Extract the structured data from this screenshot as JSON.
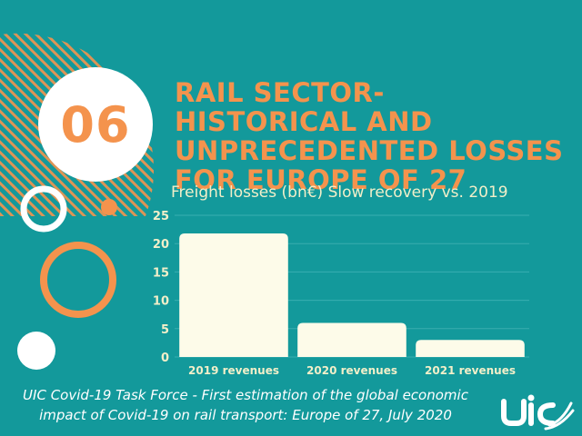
{
  "badge": {
    "number": "06"
  },
  "title": "RAIL SECTOR- HISTORICAL AND UNPRECEDENTED LOSSES FOR EUROPE OF 27",
  "subtitle": "Freight losses (bn€) Slow recovery vs. 2019",
  "caption": {
    "line1": "UIC Covid-19 Task Force - First estimation of the global economic",
    "line2": "impact of Covid-19 on rail transport: Europe of 27, July 2020"
  },
  "logo": {
    "text": "uic",
    "icon": "uic-logo-icon"
  },
  "colors": {
    "background": "#13999b",
    "accent": "#f4934d",
    "bar": "#fdfbe9",
    "label": "#f2efc9",
    "white": "#ffffff"
  },
  "chart_data": {
    "type": "bar",
    "title": "Freight losses (bn€) Slow recovery vs. 2019",
    "categories": [
      "2019 revenues",
      "2020 revenues",
      "2021 revenues"
    ],
    "values": [
      21.8,
      6.0,
      3.0
    ],
    "ylim": [
      0,
      25
    ],
    "yticks": [
      0,
      5,
      10,
      15,
      20,
      25
    ],
    "grid": true,
    "legend": "none"
  }
}
